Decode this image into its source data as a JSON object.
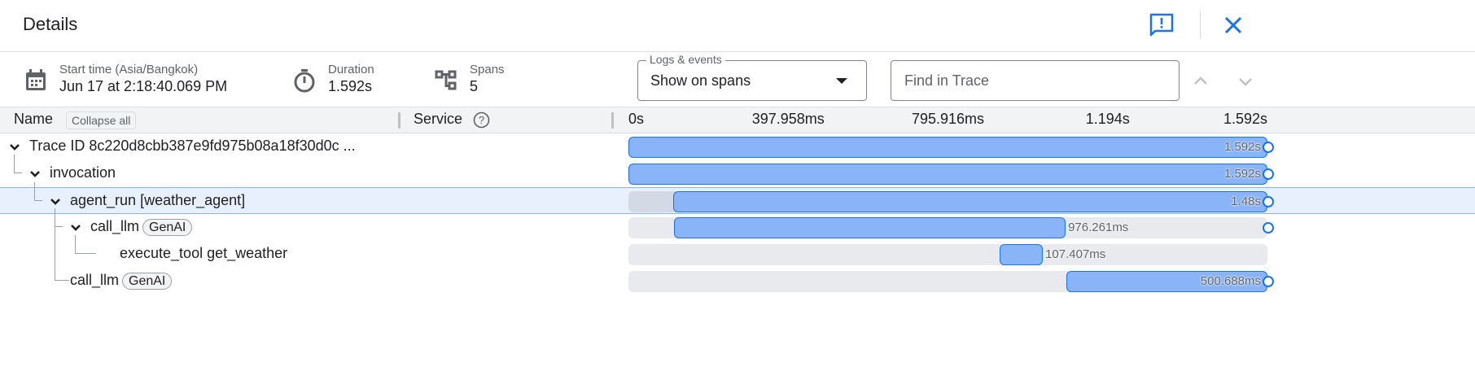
{
  "header": {
    "title": "Details",
    "feedback_icon": "feedback-icon",
    "close_icon": "close-icon"
  },
  "summary": {
    "start_label": "Start time (Asia/Bangkok)",
    "start_value": "Jun 17 at 2:18:40.069 PM",
    "duration_label": "Duration",
    "duration_value": "1.592s",
    "spans_label": "Spans",
    "spans_value": "5"
  },
  "logs_select": {
    "label": "Logs & events",
    "value": "Show on spans"
  },
  "find": {
    "placeholder": "Find in Trace"
  },
  "columns": {
    "name": "Name",
    "collapse_all": "Collapse all",
    "service": "Service"
  },
  "timeline": {
    "total_ms": 1592,
    "ticks": [
      "0s",
      "397.958ms",
      "795.916ms",
      "1.194s",
      "1.592s"
    ],
    "bar_color": "#8ab4f8",
    "border_color": "#1a73e8"
  },
  "rows": [
    {
      "name": "Trace ID 8c220d8cbb387e9fd975b08a18f30d0c ...",
      "depth": 0,
      "expandable": true,
      "start_ms": 0,
      "duration_ms": 1592,
      "duration_label": "1.592s",
      "has_event": true
    },
    {
      "name": "invocation",
      "depth": 1,
      "expandable": true,
      "start_ms": 0,
      "duration_ms": 1592,
      "duration_label": "1.592s",
      "has_event": true
    },
    {
      "name": "agent_run [weather_agent]",
      "depth": 2,
      "expandable": true,
      "selected": true,
      "start_ms": 112,
      "duration_ms": 1480,
      "duration_label": "1.48s",
      "has_event": true
    },
    {
      "name": "call_llm",
      "badge": "GenAI",
      "depth": 3,
      "expandable": true,
      "start_ms": 113,
      "duration_ms": 976.261,
      "duration_label": "976.261ms",
      "has_event": true
    },
    {
      "name": "execute_tool get_weather",
      "depth": 4,
      "expandable": false,
      "start_ms": 925,
      "duration_ms": 107.407,
      "duration_label": "107.407ms",
      "has_event": false
    },
    {
      "name": "call_llm",
      "badge": "GenAI",
      "depth": 3,
      "expandable": false,
      "start_ms": 1091,
      "duration_ms": 500.688,
      "duration_label": "500.688ms",
      "has_event": true
    }
  ]
}
